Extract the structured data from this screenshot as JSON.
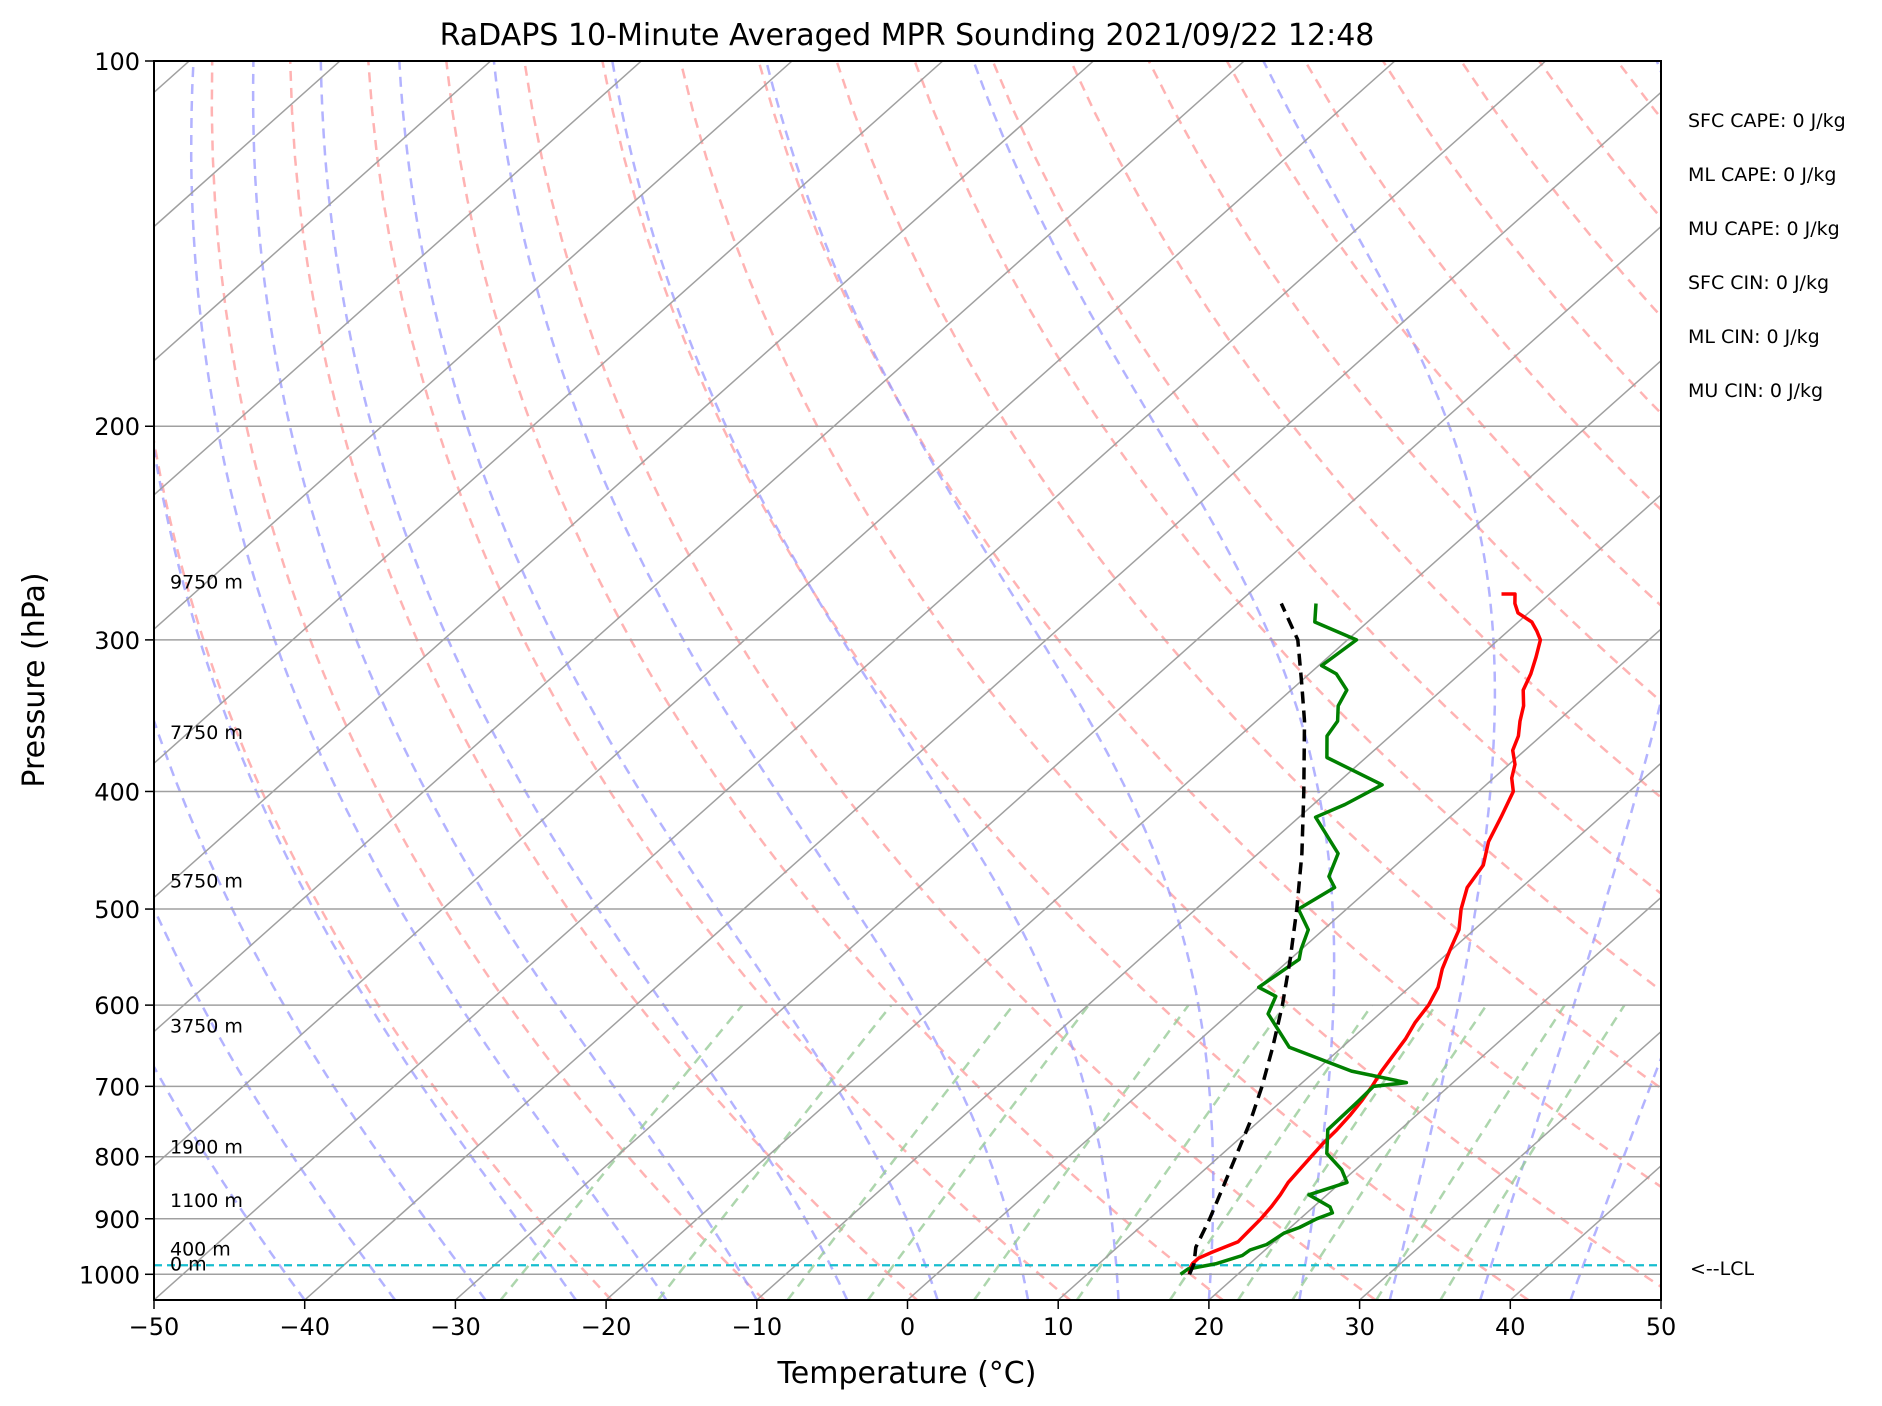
{
  "chart_data": {
    "type": "line",
    "title": "RaDAPS 10-Minute Averaged MPR Sounding 2021/09/22 12:48",
    "xlabel": "Temperature (°C)",
    "ylabel": "Pressure (hPa)",
    "xlim": [
      -50,
      50
    ],
    "ylim": [
      1050,
      100
    ],
    "y_scale": "log",
    "skew": "skew-T log-p",
    "x_ticks": [
      -50,
      -40,
      -30,
      -20,
      -10,
      0,
      10,
      20,
      30,
      40,
      50
    ],
    "x_tick_labels": [
      "−50",
      "−40",
      "−30",
      "−20",
      "−10",
      "0",
      "10",
      "20",
      "30",
      "40",
      "50"
    ],
    "y_ticks": [
      100,
      200,
      300,
      400,
      500,
      600,
      700,
      800,
      900,
      1000
    ],
    "y_tick_labels": [
      "100",
      "200",
      "300",
      "400",
      "500",
      "600",
      "700",
      "800",
      "900",
      "1000"
    ],
    "grid": true,
    "colors": {
      "temperature": "#ff0000",
      "dewpoint": "#008000",
      "parcel": "#000000",
      "lcl": "#17becf",
      "dry_adiabat": "#ff9999",
      "moist_adiabat": "#9999ff",
      "mixing_ratio": "#99cc99",
      "isotherm": "#a0a0a0"
    },
    "series": [
      {
        "id": "temperature",
        "x": [
          16.8,
          16.4,
          16.2,
          16.2,
          16.6,
          17.1,
          17.6,
          17.5,
          17.4,
          17.2,
          16.9,
          16.5,
          16.3,
          16.1,
          15.9,
          15.8,
          15.6,
          15.3,
          14.9,
          14.4,
          14.0,
          13.6,
          13.0,
          12.6,
          11.9,
          10.8,
          9.9,
          9.0,
          7.6,
          6.4,
          5.8,
          4.4,
          3.4,
          2.3,
          1.2,
          0.4,
          -0.8,
          -1.5,
          -2.5,
          -3.4,
          -4.6,
          -5.3,
          -6.2,
          -7.2,
          -8.1,
          -9.1,
          -10.7,
          -11.6,
          -12.3,
          -13.2
        ],
        "y": [
          1000,
          990,
          980,
          970,
          960,
          950,
          940,
          920,
          900,
          880,
          860,
          840,
          820,
          800,
          780,
          760,
          740,
          720,
          700,
          680,
          660,
          640,
          620,
          600,
          580,
          560,
          540,
          520,
          500,
          480,
          460,
          440,
          420,
          400,
          390,
          380,
          370,
          360,
          350,
          340,
          330,
          320,
          310,
          300,
          295,
          290,
          285,
          280,
          275,
          275
        ]
      },
      {
        "id": "dewpoint",
        "x": [
          16.2,
          16.3,
          17.8,
          18.9,
          19.0,
          19.7,
          20.0,
          20.6,
          21.1,
          21.7,
          21.1,
          18.8,
          20.4,
          19.1,
          16.9,
          15.2,
          15.1,
          15.0,
          16.9,
          12.4,
          6.5,
          2.6,
          1.8,
          0.0,
          0.6,
          0.0,
          -1.0,
          -3.2,
          -2.4,
          -3.6,
          -4.7,
          -8.9,
          -7.9,
          -6.9,
          -12.6,
          -14.2,
          -14.6,
          -15.7,
          -16.3,
          -18.2,
          -19.8,
          -19.4,
          -23.5,
          -24.8
        ],
        "y": [
          1000,
          990,
          980,
          965,
          955,
          945,
          925,
          915,
          900,
          890,
          880,
          860,
          840,
          820,
          795,
          760,
          720,
          700,
          695,
          680,
          650,
          610,
          590,
          580,
          550,
          540,
          520,
          500,
          480,
          470,
          450,
          420,
          410,
          395,
          375,
          360,
          350,
          340,
          330,
          320,
          315,
          300,
          290,
          280
        ]
      },
      {
        "id": "parcel",
        "x": [
          16.8,
          16.3,
          15.2,
          14.0,
          12.6,
          11.1,
          9.5,
          7.6,
          5.4,
          2.9,
          0.0,
          -3.3,
          -7.1,
          -11.6,
          -16.8,
          -19.9,
          -23.3,
          -27.1
        ],
        "y": [
          1000,
          980,
          950,
          900,
          850,
          800,
          750,
          700,
          650,
          600,
          550,
          500,
          450,
          400,
          350,
          325,
          300,
          280
        ]
      }
    ],
    "lcl_pressure": 983,
    "height_labels": [
      "0 m",
      "400 m",
      "1100 m",
      "1900 m",
      "3750 m",
      "5750 m",
      "7750 m",
      "9750 m"
    ],
    "height_label_pressures": [
      993,
      965,
      880,
      795,
      632,
      480,
      362,
      272
    ],
    "lcl_label": "<--LCL",
    "info_lines": [
      "SFC CAPE: 0 J/kg",
      "ML CAPE: 0 J/kg",
      "MU CAPE: 0 J/kg",
      "SFC CIN: 0 J/kg",
      "ML CIN: 0 J/kg",
      "MU CIN: 0 J/kg"
    ]
  }
}
